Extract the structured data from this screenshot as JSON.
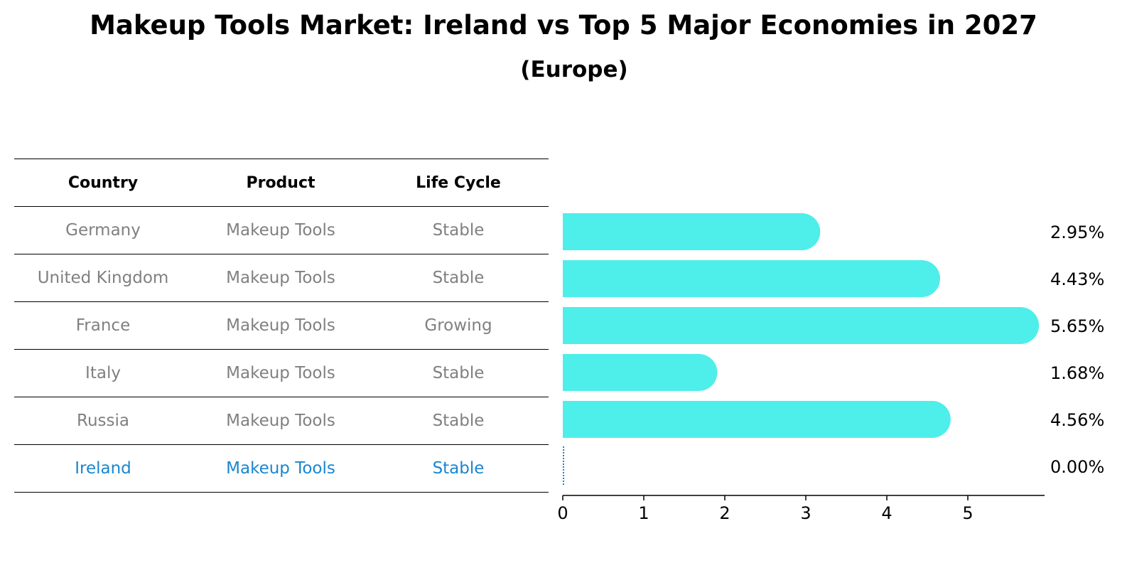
{
  "title": "Makeup Tools Market: Ireland vs Top 5 Major Economies in 2027",
  "subtitle": "(Europe)",
  "table": {
    "headers": [
      "Country",
      "Product",
      "Life Cycle"
    ],
    "rows": [
      [
        "Germany",
        "Makeup Tools",
        "Stable"
      ],
      [
        "United Kingdom",
        "Makeup Tools",
        "Stable"
      ],
      [
        "France",
        "Makeup Tools",
        "Growing"
      ],
      [
        "Italy",
        "Makeup Tools",
        "Stable"
      ],
      [
        "Russia",
        "Makeup Tools",
        "Stable"
      ],
      [
        "Ireland",
        "Makeup Tools",
        "Stable"
      ]
    ],
    "highlight_row": "Ireland"
  },
  "colors": {
    "bar": "#4eeeea",
    "highlight_text": "#1a86d0",
    "muted_text": "#808080"
  },
  "chart_data": {
    "type": "bar",
    "orientation": "horizontal",
    "categories": [
      "Germany",
      "United Kingdom",
      "France",
      "Italy",
      "Russia",
      "Ireland"
    ],
    "values": [
      2.95,
      4.43,
      5.65,
      1.68,
      4.56,
      0.0
    ],
    "value_labels": [
      "2.95%",
      "4.43%",
      "5.65%",
      "1.68%",
      "4.56%",
      "0.00%"
    ],
    "xlim": [
      0,
      5.95
    ],
    "xticks": [
      0,
      1,
      2,
      3,
      4,
      5
    ],
    "grid": false,
    "legend": "none"
  }
}
